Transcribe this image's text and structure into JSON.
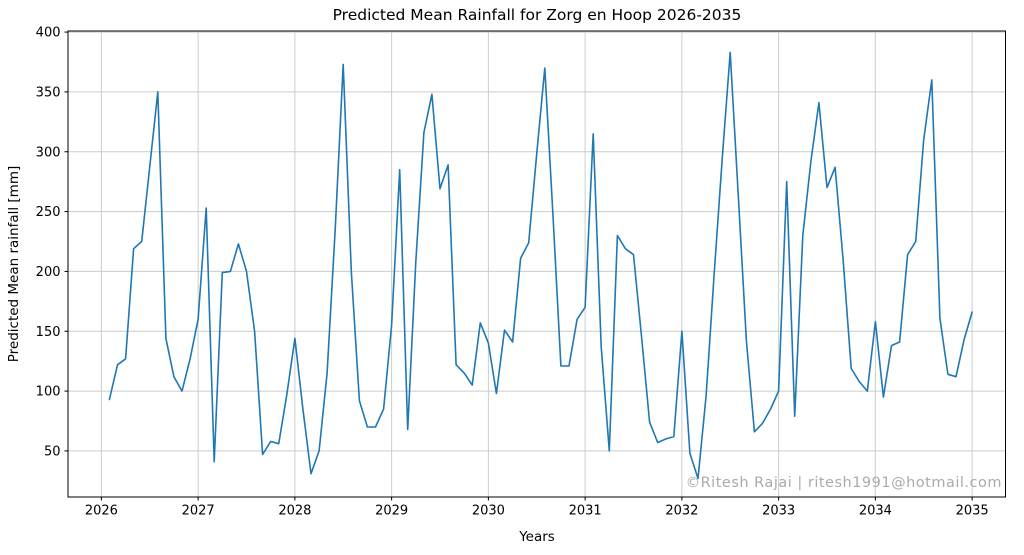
{
  "chart_data": {
    "type": "line",
    "title": "Predicted Mean Rainfall for Zorg en Hoop 2026-2035",
    "xlabel": "Years",
    "ylabel": "Predicted Mean rainfall [mm]",
    "watermark": "©Ritesh Rajai | ritesh1991@hotmail.com",
    "x_ticks": [
      2026,
      2027,
      2028,
      2029,
      2030,
      2031,
      2032,
      2033,
      2034,
      2035
    ],
    "y_ticks": [
      50,
      100,
      150,
      200,
      250,
      300,
      350,
      400
    ],
    "xlim": [
      2025.655,
      2035.345
    ],
    "ylim": [
      11.5,
      400.9
    ],
    "grid": true,
    "legend": "none",
    "line_color": "#1f77b4",
    "grid_color": "#cccccc",
    "spine_color": "#000000",
    "series": [
      {
        "name": "Predicted Mean Rainfall",
        "x_start": 2026.0833,
        "x_step": 0.0833333,
        "values": [
          93,
          122,
          127,
          219,
          225,
          287,
          350,
          144,
          112,
          100,
          127,
          160,
          253,
          41,
          199,
          200,
          223,
          200,
          150,
          47,
          58,
          56,
          97,
          144,
          85,
          31,
          50,
          115,
          235,
          373,
          200,
          92,
          70,
          70,
          85,
          155,
          285,
          68,
          208,
          316,
          348,
          269,
          289,
          122,
          115,
          105,
          157,
          140,
          98,
          151,
          141,
          211,
          224,
          298,
          370,
          248,
          121,
          121,
          160,
          170,
          315,
          137,
          50,
          230,
          219,
          214,
          145,
          74,
          57,
          60,
          62,
          150,
          48,
          27,
          96,
          197,
          294,
          383,
          263,
          142,
          66,
          73,
          85,
          100,
          275,
          79,
          230,
          292,
          341,
          270,
          287,
          210,
          119,
          108,
          100,
          158,
          95,
          138,
          141,
          214,
          225,
          310,
          360,
          161,
          114,
          112,
          143,
          166
        ]
      }
    ]
  }
}
